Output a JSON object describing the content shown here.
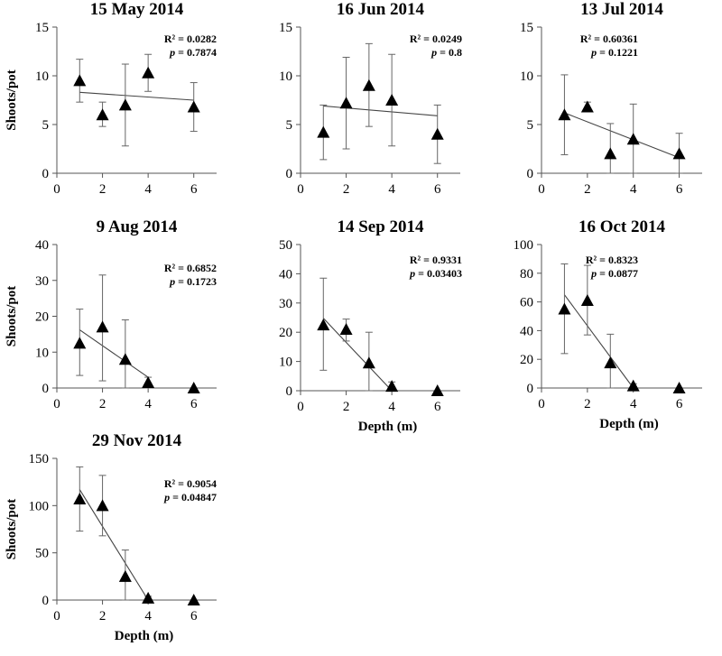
{
  "chart_data": [
    {
      "type": "scatter",
      "title": "15 May 2014",
      "xlabel": "",
      "ylabel": "Shoots/pot",
      "xlim": [
        0,
        7
      ],
      "ylim": [
        0,
        15
      ],
      "xticks": [
        0,
        2,
        4,
        6
      ],
      "yticks": [
        0,
        5,
        10,
        15
      ],
      "x": [
        1,
        2,
        3,
        4,
        6
      ],
      "y": [
        9.5,
        6.0,
        7.0,
        10.3,
        6.8
      ],
      "error_low": [
        7.3,
        4.8,
        2.8,
        8.4,
        4.3
      ],
      "error_high": [
        11.7,
        7.3,
        11.2,
        12.2,
        9.3
      ],
      "trendline": {
        "x": [
          1,
          6
        ],
        "y": [
          8.3,
          7.5
        ]
      },
      "stats": {
        "r2": "R² = 0.0282",
        "p_label": "p",
        "p_value": " = 0.7874"
      }
    },
    {
      "type": "scatter",
      "title": "16 Jun 2014",
      "xlabel": "",
      "ylabel": "",
      "xlim": [
        0,
        7
      ],
      "ylim": [
        0,
        15
      ],
      "xticks": [
        0,
        2,
        4,
        6
      ],
      "yticks": [
        0,
        5,
        10,
        15
      ],
      "x": [
        1,
        2,
        3,
        4,
        6
      ],
      "y": [
        4.2,
        7.2,
        9.0,
        7.5,
        4.0
      ],
      "error_low": [
        1.4,
        2.5,
        4.8,
        2.8,
        1.0
      ],
      "error_high": [
        7.0,
        11.9,
        13.3,
        12.2,
        7.0
      ],
      "trendline": {
        "x": [
          1,
          6
        ],
        "y": [
          6.9,
          5.9
        ]
      },
      "stats": {
        "r2": "R² = 0.0249",
        "p_label": "p",
        "p_value": " = 0.8"
      }
    },
    {
      "type": "scatter",
      "title": "13 Jul 2014",
      "xlabel": "",
      "ylabel": "",
      "xlim": [
        0,
        7
      ],
      "ylim": [
        0,
        15
      ],
      "xticks": [
        0,
        2,
        4,
        6
      ],
      "yticks": [
        0,
        5,
        10,
        15
      ],
      "x": [
        1,
        2,
        3,
        4,
        6
      ],
      "y": [
        6.0,
        6.8,
        2.0,
        3.5,
        2.0
      ],
      "error_low": [
        1.9,
        6.3,
        0.0,
        0.0,
        0.0
      ],
      "error_high": [
        10.1,
        7.3,
        5.1,
        7.1,
        4.1
      ],
      "trendline": {
        "x": [
          1,
          6
        ],
        "y": [
          6.2,
          1.6
        ]
      },
      "stats": {
        "r2": "R² = 0.60361",
        "p_label": "p",
        "p_value": " = 0.1221"
      }
    },
    {
      "type": "scatter",
      "title": "9 Aug 2014",
      "xlabel": "",
      "ylabel": "Shoots/pot",
      "xlim": [
        0,
        7
      ],
      "ylim": [
        0,
        40
      ],
      "xticks": [
        0,
        2,
        4,
        6
      ],
      "yticks": [
        0,
        10,
        20,
        30,
        40
      ],
      "x": [
        1,
        2,
        3,
        4,
        6
      ],
      "y": [
        12.5,
        17.0,
        8.0,
        1.5,
        0.0
      ],
      "error_low": [
        3.5,
        2.0,
        0.0,
        0.0,
        0.0
      ],
      "error_high": [
        22.0,
        31.5,
        19.0,
        3.0,
        0.0
      ],
      "trendline": {
        "x": [
          1,
          4
        ],
        "y": [
          16.2,
          3.0
        ]
      },
      "stats": {
        "r2": "R² = 0.6852",
        "p_label": "p",
        "p_value": " = 0.1723"
      }
    },
    {
      "type": "scatter",
      "title": "14 Sep 2014",
      "xlabel": "Depth (m)",
      "ylabel": "",
      "xlim": [
        0,
        7
      ],
      "ylim": [
        0,
        50
      ],
      "xticks": [
        0,
        2,
        4,
        6
      ],
      "yticks": [
        0,
        10,
        20,
        30,
        40,
        50
      ],
      "x": [
        1,
        2,
        3,
        4,
        6
      ],
      "y": [
        22.5,
        21.0,
        9.5,
        1.5,
        0.0
      ],
      "error_low": [
        7.0,
        17.0,
        0.0,
        0.0,
        0.0
      ],
      "error_high": [
        38.5,
        24.5,
        20.0,
        3.0,
        0.0
      ],
      "trendline": {
        "x": [
          1,
          4
        ],
        "y": [
          24.8,
          0.0
        ]
      },
      "stats": {
        "r2": "R² = 0.9331",
        "p_label": "p",
        "p_value": " = 0.03403"
      }
    },
    {
      "type": "scatter",
      "title": "16 Oct 2014",
      "xlabel": "Depth (m)",
      "ylabel": "",
      "xlim": [
        0,
        7
      ],
      "ylim": [
        0,
        100
      ],
      "xticks": [
        0,
        2,
        4,
        6
      ],
      "yticks": [
        0,
        20,
        40,
        60,
        80,
        100
      ],
      "x": [
        1,
        2,
        3,
        4,
        6
      ],
      "y": [
        55.0,
        61.0,
        17.5,
        1.5,
        0.0
      ],
      "error_low": [
        24.0,
        37.0,
        0.0,
        0.0,
        0.0
      ],
      "error_high": [
        86.5,
        85.5,
        37.5,
        3.0,
        0.0
      ],
      "trendline": {
        "x": [
          1,
          4
        ],
        "y": [
          65.0,
          0.0
        ]
      },
      "stats": {
        "r2": "R² = 0.8323",
        "p_label": "p",
        "p_value": " = 0.0877"
      }
    },
    {
      "type": "scatter",
      "title": "29 Nov 2014",
      "xlabel": "Depth (m)",
      "ylabel": "Shoots/pot",
      "xlim": [
        0,
        7
      ],
      "ylim": [
        0,
        150
      ],
      "xticks": [
        0,
        2,
        4,
        6
      ],
      "yticks": [
        0,
        50,
        100,
        150
      ],
      "x": [
        1,
        2,
        3,
        4,
        6
      ],
      "y": [
        107,
        100,
        25,
        2,
        0
      ],
      "error_low": [
        73,
        68,
        0,
        0,
        0
      ],
      "error_high": [
        141,
        132,
        53,
        4,
        0
      ],
      "trendline": {
        "x": [
          1,
          4
        ],
        "y": [
          117,
          0
        ]
      },
      "stats": {
        "r2": "R² = 0.9054",
        "p_label": "p",
        "p_value": " = 0.04847"
      }
    }
  ]
}
